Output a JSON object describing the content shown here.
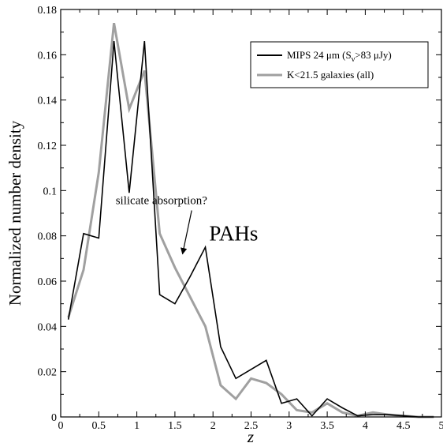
{
  "chart_data": {
    "type": "line",
    "xlabel": "z",
    "ylabel": "Normalized number density",
    "xlim": [
      0,
      5
    ],
    "ylim": [
      0,
      0.18
    ],
    "xticks": [
      0,
      0.5,
      1,
      1.5,
      2,
      2.5,
      3,
      3.5,
      4,
      4.5,
      5
    ],
    "xtick_labels": [
      "0",
      "0.5",
      "1",
      "1.5",
      "2",
      "2.5",
      "3",
      "3.5",
      "4",
      "4.5",
      "5"
    ],
    "yticks": [
      0,
      0.02,
      0.04,
      0.06,
      0.08,
      0.1,
      0.12,
      0.14,
      0.16,
      0.18
    ],
    "ytick_labels": [
      "0",
      "0.02",
      "0.04",
      "0.06",
      "0.08",
      "0.1",
      "0.12",
      "0.14",
      "0.16",
      "0.18"
    ],
    "grid": false,
    "legend_position": "top-right",
    "series": [
      {
        "name": "MIPS 24 μm (S",
        "name_sub": "ν",
        "name_suffix": ">83 μJy)",
        "color": "#000000",
        "x": [
          0.1,
          0.3,
          0.5,
          0.7,
          0.9,
          1.1,
          1.3,
          1.5,
          1.7,
          1.9,
          2.1,
          2.3,
          2.5,
          2.7,
          2.9,
          3.1,
          3.3,
          3.5,
          3.7,
          3.9,
          4.1,
          4.3,
          4.5,
          4.7,
          4.9
        ],
        "y": [
          0.043,
          0.081,
          0.079,
          0.166,
          0.099,
          0.166,
          0.054,
          0.05,
          0.062,
          0.075,
          0.031,
          0.017,
          0.021,
          0.025,
          0.006,
          0.008,
          0.0005,
          0.008,
          0.004,
          0.0005,
          0.001,
          0.001,
          0.0005,
          0.0,
          0.0
        ]
      },
      {
        "name": "K<21.5 galaxies (all)",
        "color": "#a0a0a0",
        "x": [
          0.1,
          0.3,
          0.5,
          0.7,
          0.9,
          1.1,
          1.3,
          1.5,
          1.7,
          1.9,
          2.1,
          2.3,
          2.5,
          2.7,
          2.9,
          3.1,
          3.3,
          3.5,
          3.7,
          3.9,
          4.1,
          4.3,
          4.5,
          4.7,
          4.9
        ],
        "y": [
          0.044,
          0.065,
          0.108,
          0.174,
          0.136,
          0.153,
          0.081,
          0.066,
          0.053,
          0.04,
          0.014,
          0.008,
          0.017,
          0.015,
          0.01,
          0.003,
          0.002,
          0.006,
          0.002,
          0.0005,
          0.002,
          0.001,
          0.0005,
          0.0,
          0.0
        ]
      }
    ],
    "annotations": [
      {
        "text": "silicate absorption?",
        "x": 1.6,
        "y": 0.094,
        "arrow_to": [
          1.6,
          0.072
        ],
        "size": "small"
      },
      {
        "text": "PAHs",
        "x": 1.95,
        "y": 0.078,
        "size": "large"
      }
    ]
  }
}
